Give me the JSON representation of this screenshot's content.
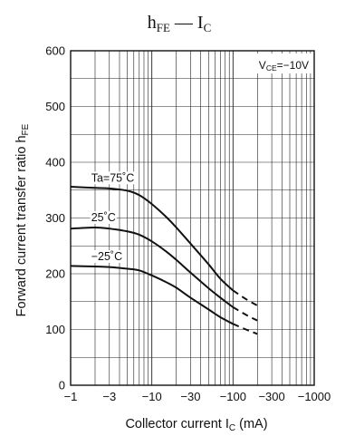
{
  "chart_data": {
    "type": "line",
    "title": {
      "main": "h",
      "main_sub": "FE",
      "dash": " — ",
      "var": "I",
      "var_sub": "C"
    },
    "ylabel": {
      "text": "Forward current transfer ratio  h",
      "sub": "FE"
    },
    "xlabel": {
      "text": "Collector current  I",
      "sub": "C",
      "unit": "  (mA)"
    },
    "condition": {
      "prefix": "V",
      "sub": "CE",
      "value": "=−10V"
    },
    "x_scale": "log",
    "xlim": [
      -1,
      -1000
    ],
    "ylim": [
      0,
      600
    ],
    "x_ticks": [
      {
        "value": -1,
        "label": "−1"
      },
      {
        "value": -3,
        "label": "−3"
      },
      {
        "value": -10,
        "label": "−10"
      },
      {
        "value": -30,
        "label": "−30"
      },
      {
        "value": -100,
        "label": "−100"
      },
      {
        "value": -300,
        "label": "−300"
      },
      {
        "value": -1000,
        "label": "−1000"
      }
    ],
    "y_ticks": [
      0,
      100,
      200,
      300,
      400,
      500,
      600
    ],
    "grid": true,
    "series": [
      {
        "name": "Ta=75˚C",
        "x": [
          -1,
          -2,
          -3,
          -5,
          -7,
          -10,
          -15,
          -20,
          -30,
          -50,
          -70,
          -100,
          -150,
          -200
        ],
        "y": [
          356,
          354,
          353,
          349,
          341,
          325,
          302,
          283,
          254,
          217,
          191,
          170,
          153,
          143
        ],
        "dashed_from_x": -100
      },
      {
        "name": "25˚C",
        "x": [
          -1,
          -2,
          -3,
          -5,
          -7,
          -10,
          -15,
          -20,
          -30,
          -50,
          -70,
          -100,
          -150,
          -200
        ],
        "y": [
          281,
          283,
          281,
          276,
          270,
          258,
          240,
          225,
          202,
          174,
          157,
          140,
          125,
          116
        ],
        "dashed_from_x": -100
      },
      {
        "name": "−25˚C",
        "x": [
          -1,
          -2,
          -3,
          -5,
          -7,
          -10,
          -15,
          -20,
          -30,
          -50,
          -70,
          -100,
          -150,
          -200
        ],
        "y": [
          214,
          213,
          212,
          209,
          206,
          197,
          185,
          175,
          157,
          136,
          122,
          110,
          99,
          92
        ],
        "dashed_from_x": -100
      }
    ]
  }
}
